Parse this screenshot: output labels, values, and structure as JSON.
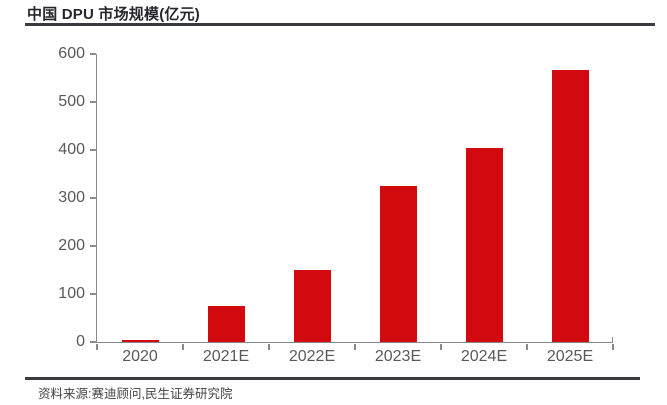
{
  "header": {
    "title": "中国 DPU 市场规模(亿元)"
  },
  "footer": {
    "source": "资料来源:赛迪顾问,民生证券研究院"
  },
  "chart_data": {
    "type": "bar",
    "title": "中国 DPU 市场规模(亿元)",
    "categories": [
      "2020",
      "2021E",
      "2022E",
      "2023E",
      "2024E",
      "2025E"
    ],
    "values": [
      5,
      76,
      150,
      324,
      405,
      566
    ],
    "xlabel": "",
    "ylabel": "",
    "unit": "亿元",
    "ylim": [
      0,
      600
    ],
    "yticks": [
      0,
      100,
      200,
      300,
      400,
      500,
      600
    ],
    "grid": false,
    "legend": false,
    "bar_color": "#d20a10",
    "axis_color": "#8a8a8a",
    "tick_label_color": "#595959",
    "title_color": "#26262e",
    "rule_color": "#3a3a40"
  }
}
